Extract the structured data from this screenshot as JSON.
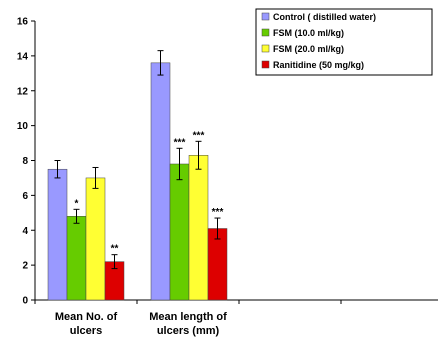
{
  "chart_data": {
    "type": "bar",
    "ylim": [
      0,
      16
    ],
    "yticks": [
      0,
      2,
      4,
      6,
      8,
      10,
      12,
      14,
      16
    ],
    "grid": false,
    "legend_position": "top-right",
    "categories": [
      [
        "Mean No. of",
        "ulcers"
      ],
      [
        "Mean length of",
        "ulcers (mm)"
      ]
    ],
    "series": [
      {
        "name": "Control ( distilled water)",
        "color": "#9999ff",
        "values": [
          7.5,
          13.6
        ],
        "errors": [
          0.5,
          0.7
        ],
        "significance": [
          "",
          ""
        ]
      },
      {
        "name": "FSM (10.0 ml/kg)",
        "color": "#66cc00",
        "values": [
          4.8,
          7.8
        ],
        "errors": [
          0.4,
          0.9
        ],
        "significance": [
          "*",
          "***"
        ]
      },
      {
        "name": "FSM (20.0 ml/kg)",
        "color": "#ffff33",
        "values": [
          7.0,
          8.3
        ],
        "errors": [
          0.6,
          0.8
        ],
        "significance": [
          "",
          "***"
        ]
      },
      {
        "name": "Ranitidine (50 mg/kg)",
        "color": "#dd0000",
        "values": [
          2.2,
          4.1
        ],
        "errors": [
          0.4,
          0.6
        ],
        "significance": [
          "**",
          "***"
        ]
      }
    ]
  }
}
